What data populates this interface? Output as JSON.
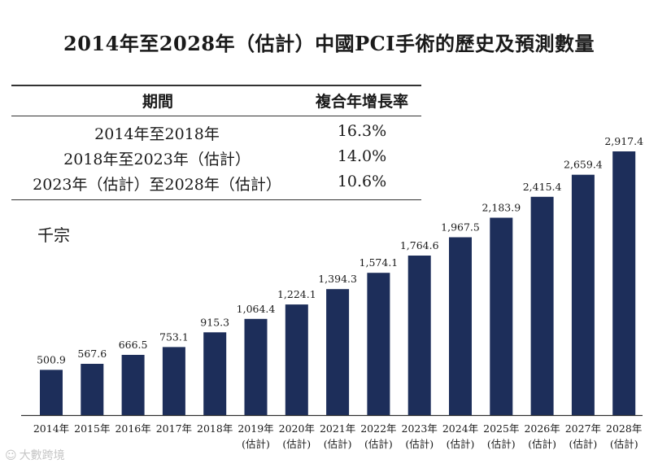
{
  "title": "2014年至2028年（估計）中國PCI手術的歷史及預測數量",
  "cagr_table": {
    "header_period": "期間",
    "header_rate": "複合年增長率",
    "rows": [
      {
        "period": "2014年至2018年",
        "rate": "16.3%"
      },
      {
        "period": "2018年至2023年（估計）",
        "rate": "14.0%"
      },
      {
        "period": "2023年（估計）至2028年（估計）",
        "rate": "10.6%"
      }
    ]
  },
  "watermark": {
    "logo": "☺",
    "text": "大數跨境"
  },
  "chart_data": {
    "type": "bar",
    "title": "2014年至2028年（估計）中國PCI手術的歷史及預測數量",
    "ylabel": "千宗",
    "xlabel": "",
    "categories": [
      "2014年",
      "2015年",
      "2016年",
      "2017年",
      "2018年",
      "2019年",
      "2020年",
      "2021年",
      "2022年",
      "2023年",
      "2024年",
      "2025年",
      "2026年",
      "2027年",
      "2028年"
    ],
    "category_notes": [
      "",
      "",
      "",
      "",
      "",
      "(估計)",
      "(估計)",
      "(估計)",
      "(估計)",
      "(估計)",
      "(估計)",
      "(估計)",
      "(估計)",
      "(估計)",
      "(估計)"
    ],
    "values": [
      500.9,
      567.6,
      666.5,
      753.1,
      915.3,
      1064.4,
      1224.1,
      1394.3,
      1574.1,
      1764.6,
      1967.5,
      2183.9,
      2415.4,
      2659.4,
      2917.4
    ],
    "value_labels": [
      "500.9",
      "567.6",
      "666.5",
      "753.1",
      "915.3",
      "1,064.4",
      "1,224.1",
      "1,394.3",
      "1,574.1",
      "1,764.6",
      "1,967.5",
      "2,183.9",
      "2,415.4",
      "2,659.4",
      "2,917.4"
    ],
    "ylim": [
      0,
      2917.4
    ],
    "grid": false,
    "bar_color": "#1d2e5a"
  }
}
